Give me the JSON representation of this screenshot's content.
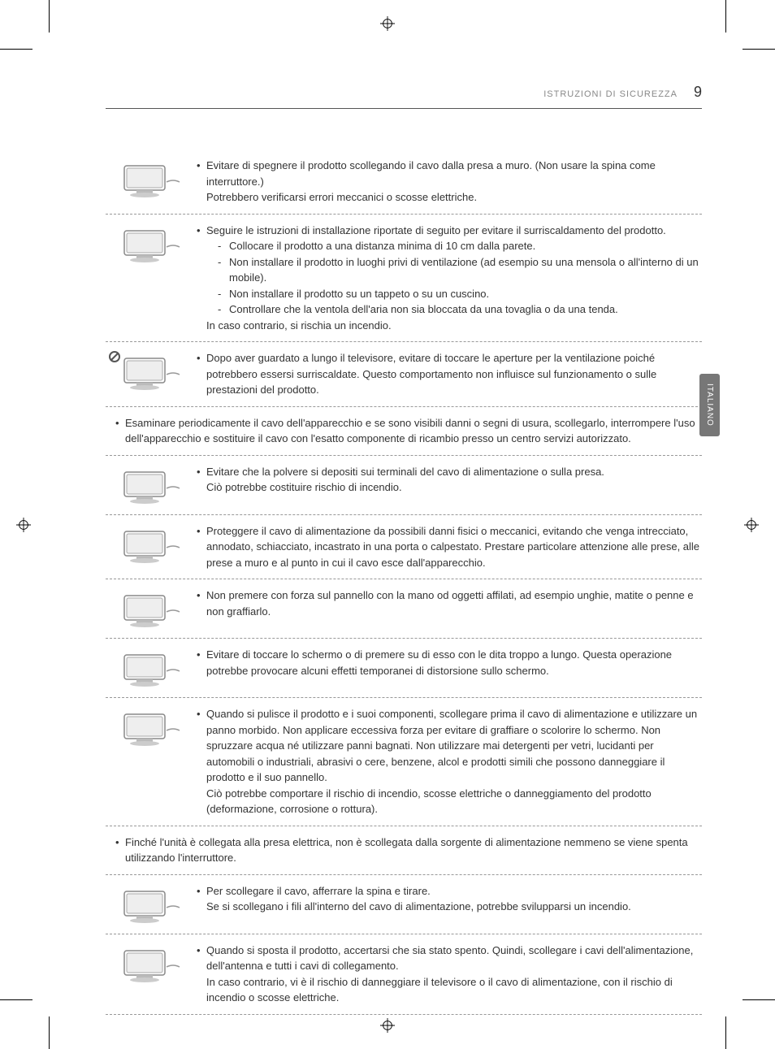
{
  "header": {
    "section_title": "ISTRUZIONI DI SICUREZZA",
    "page_number": "9"
  },
  "side_tab": "ITALIANO",
  "items": [
    {
      "illus": "tv-unplug",
      "bullets": [
        {
          "text": "Evitare di spegnere il prodotto scollegando il cavo dalla presa a muro. (Non usare la spina come interruttore.)\nPotrebbero verificarsi errori meccanici o scosse elettriche."
        }
      ]
    },
    {
      "illus": "tv-ventilation",
      "bullets": [
        {
          "text": "Seguire le istruzioni di installazione riportate di seguito per evitare il surriscaldamento del prodotto.",
          "sub": [
            "Collocare il prodotto a una distanza minima di 10 cm dalla parete.",
            "Non installare il prodotto in luoghi privi di ventilazione (ad esempio su una mensola o all'interno di un mobile).",
            "Non installare il prodotto su un tappeto o su un cuscino.",
            "Controllare che la ventola dell'aria non sia bloccata da una tovaglia o da una tenda."
          ],
          "tail": "In caso contrario, si rischia un incendio."
        }
      ]
    },
    {
      "illus": "tv-hot",
      "warn": true,
      "bullets": [
        {
          "text": "Dopo aver guardato a lungo il televisore, evitare di toccare le aperture per la ventilazione poiché potrebbero essersi surriscaldate. Questo comportamento non influisce sul funzionamento o sulle prestazioni del prodotto."
        }
      ]
    },
    {
      "no_illus": true,
      "bullets": [
        {
          "text": "Esaminare periodicamente il cavo dell'apparecchio e se sono visibili danni o segni di usura, scollegarlo, interrompere l'uso dell'apparecchio e sostituire il cavo con l'esatto componente di ricambio presso un centro servizi autorizzato."
        }
      ]
    },
    {
      "illus": "plug-dust",
      "bullets": [
        {
          "text": "Evitare che la polvere si depositi sui terminali del cavo di alimentazione o sulla presa.\nCiò potrebbe costituire rischio di incendio."
        }
      ]
    },
    {
      "illus": "cord-damage",
      "bullets": [
        {
          "text": "Proteggere il cavo di alimentazione da possibili danni fisici o meccanici, evitando che venga intrecciato, annodato, schiacciato, incastrato in una porta o calpestato. Prestare particolare attenzione alle prese, alle prese a muro e al punto in cui il cavo esce dall'apparecchio."
        }
      ]
    },
    {
      "illus": "tv-press",
      "bullets": [
        {
          "text": "Non premere con forza sul pannello con la mano od oggetti affilati, ad esempio unghie, matite o penne e non graffiarlo."
        }
      ]
    },
    {
      "illus": "tv-touch",
      "bullets": [
        {
          "text": "Evitare di toccare lo schermo o di premere su di esso con le dita troppo a lungo. Questa operazione potrebbe provocare alcuni effetti temporanei di distorsione sullo schermo."
        }
      ]
    },
    {
      "illus": "tv-clean",
      "bullets": [
        {
          "text": "Quando si pulisce il prodotto e i suoi componenti, scollegare prima il cavo di alimentazione e utilizzare un panno morbido. Non applicare eccessiva forza per evitare di graffiare o scolorire lo schermo. Non spruzzare acqua né utilizzare panni bagnati. Non utilizzare mai detergenti per vetri, lucidanti per automobili o industriali, abrasivi o cere, benzene, alcol e prodotti simili che possono danneggiare il prodotto e il suo pannello.\nCiò potrebbe comportare il rischio di incendio, scosse elettriche o danneggiamento del prodotto (deformazione, corrosione o rottura)."
        }
      ]
    },
    {
      "no_illus": true,
      "bullets": [
        {
          "text": "Finché l'unità è collegata alla presa elettrica, non è scollegata dalla sorgente di alimentazione nemmeno se viene spenta utilizzando l'interruttore."
        }
      ]
    },
    {
      "illus": "plug-pull",
      "bullets": [
        {
          "text": "Per scollegare il cavo, afferrare la spina e tirare.\nSe si scollegano i fili all'interno del cavo di alimentazione, potrebbe svilupparsi un incendio."
        }
      ]
    },
    {
      "illus": "tv-move",
      "bullets": [
        {
          "text": "Quando si sposta il prodotto, accertarsi che sia stato spento. Quindi, scollegare i cavi dell'alimentazione, dell'antenna e tutti i cavi di collegamento.\nIn caso contrario, vi è il rischio di danneggiare il televisore o il cavo di alimentazione, con il rischio di incendio o scosse elettriche."
        }
      ]
    }
  ]
}
